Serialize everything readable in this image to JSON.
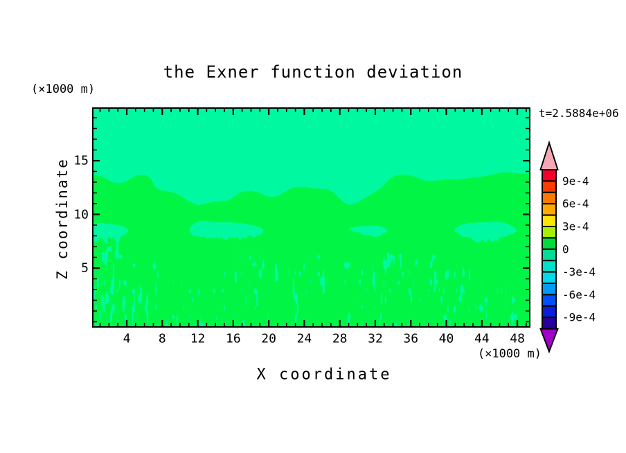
{
  "chart_data": {
    "type": "heatmap",
    "title": "the Exner function deviation",
    "time_label": "t=2.5884e+06",
    "x": {
      "label": "X coordinate",
      "unit": "(×1000 m)",
      "major_ticks": [
        4,
        8,
        12,
        16,
        20,
        24,
        28,
        32,
        36,
        40,
        44,
        48
      ],
      "minor_step": 1,
      "range": [
        0.25,
        49.3
      ]
    },
    "y": {
      "label": "Z coordinate",
      "unit": "(×1000 m)",
      "major_ticks": [
        5,
        10,
        15
      ],
      "minor_step": 1,
      "range": [
        0,
        19.8
      ]
    },
    "colorbar": {
      "labels": [
        "9e-4",
        "6e-4",
        "3e-4",
        "0",
        "-3e-4",
        "-6e-4",
        "-9e-4"
      ],
      "level_step": 0.00015,
      "segment_colors": [
        "#f5002d",
        "#ff3c00",
        "#ff7800",
        "#ffaa00",
        "#ffe600",
        "#a5f000",
        "#00dc3c",
        "#00dc96",
        "#00e0c8",
        "#00d8ec",
        "#009bf5",
        "#0050ff",
        "#0a1edc",
        "#2800a0"
      ],
      "over_arrow_color": "#f5a8b4",
      "under_arrow_color": "#a000c8"
    },
    "field_colors": {
      "positive_band": "#00f545",
      "negative_band": "#00f9a0"
    },
    "field_note": "fill contours: band 0..1.5e-4 (green) and -1.5e-4..0 (spring green); smooth blobs aloft, fine vertical streaks near the surface"
  }
}
